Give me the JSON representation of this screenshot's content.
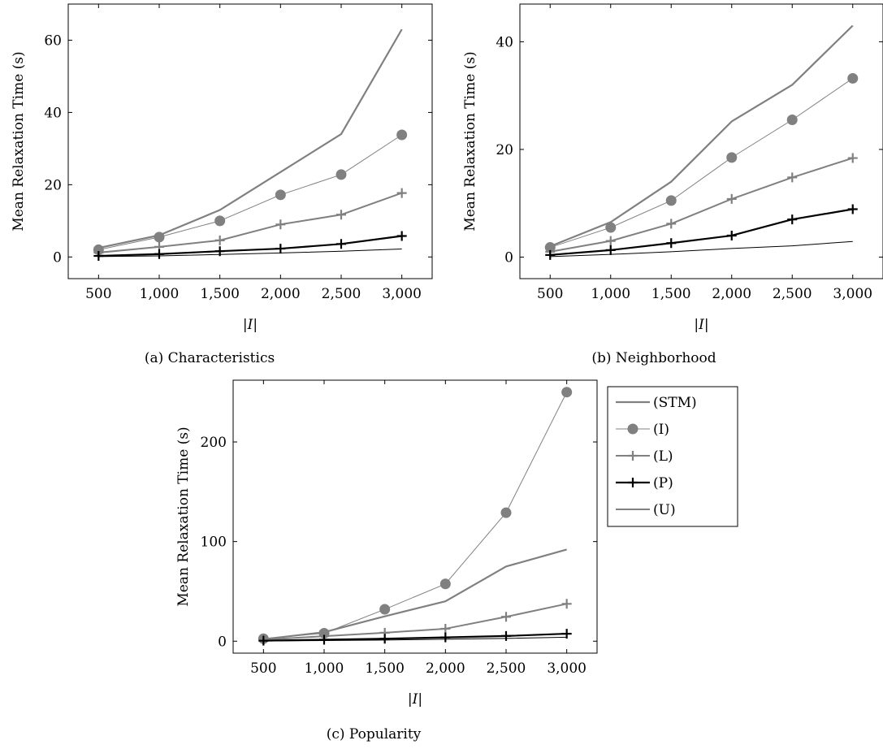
{
  "styles": {
    "STM": {
      "color": "#808080",
      "width": 2.2,
      "marker": "none"
    },
    "I": {
      "color": "#808080",
      "width": 1.0,
      "marker": "circle"
    },
    "L": {
      "color": "#808080",
      "width": 2.0,
      "marker": "plus"
    },
    "P": {
      "color": "#000000",
      "width": 2.2,
      "marker": "plus"
    },
    "U": {
      "color": "#000000",
      "width": 1.0,
      "marker": "none"
    }
  },
  "legend": {
    "entries": [
      {
        "key": "STM",
        "label": "(STM)"
      },
      {
        "key": "I",
        "label": "(I)"
      },
      {
        "key": "L",
        "label": "(L)"
      },
      {
        "key": "P",
        "label": "(P)"
      },
      {
        "key": "U",
        "label": "(U)"
      }
    ]
  },
  "chart_data": [
    {
      "id": "a",
      "type": "line",
      "caption": "(a) Characteristics",
      "xlabel": "|I|",
      "ylabel": "Mean Relaxation Time (s)",
      "x": [
        500,
        1000,
        1500,
        2000,
        2500,
        3000
      ],
      "xtick_labels": [
        "500",
        "1,000",
        "1,500",
        "2,000",
        "2,500",
        "3,000"
      ],
      "xlim": [
        250,
        3250
      ],
      "ylim": [
        -6,
        70
      ],
      "yticks": [
        0,
        20,
        40,
        60
      ],
      "grid": false,
      "series": [
        {
          "key": "STM",
          "name": "(STM)",
          "values": [
            2.5,
            6.0,
            13.0,
            23.5,
            34.0,
            63.0
          ]
        },
        {
          "key": "I",
          "name": "(I)",
          "values": [
            2.0,
            5.5,
            10.0,
            17.2,
            22.8,
            33.8
          ]
        },
        {
          "key": "L",
          "name": "(L)",
          "values": [
            1.2,
            2.8,
            4.6,
            9.0,
            11.7,
            17.7
          ]
        },
        {
          "key": "P",
          "name": "(P)",
          "values": [
            0.3,
            0.8,
            1.6,
            2.3,
            3.6,
            5.8
          ]
        },
        {
          "key": "U",
          "name": "(U)",
          "values": [
            0.1,
            0.3,
            0.7,
            1.1,
            1.6,
            2.2
          ]
        }
      ]
    },
    {
      "id": "b",
      "type": "line",
      "caption": "(b) Neighborhood",
      "xlabel": "|I|",
      "ylabel": "Mean Relaxation Time (s)",
      "x": [
        500,
        1000,
        1500,
        2000,
        2500,
        3000
      ],
      "xtick_labels": [
        "500",
        "1,000",
        "1,500",
        "2,000",
        "2,500",
        "3,000"
      ],
      "xlim": [
        250,
        3250
      ],
      "ylim": [
        -4,
        47
      ],
      "yticks": [
        0,
        20,
        40
      ],
      "grid": false,
      "series": [
        {
          "key": "STM",
          "name": "(STM)",
          "values": [
            2.0,
            6.5,
            14.0,
            25.2,
            32.0,
            43.0
          ]
        },
        {
          "key": "I",
          "name": "(I)",
          "values": [
            1.8,
            5.5,
            10.5,
            18.5,
            25.5,
            33.2
          ]
        },
        {
          "key": "L",
          "name": "(L)",
          "values": [
            1.0,
            3.0,
            6.2,
            10.8,
            14.8,
            18.4
          ]
        },
        {
          "key": "P",
          "name": "(P)",
          "values": [
            0.4,
            1.3,
            2.6,
            4.0,
            7.0,
            8.9
          ]
        },
        {
          "key": "U",
          "name": "(U)",
          "values": [
            0.1,
            0.5,
            1.0,
            1.6,
            2.1,
            2.9
          ]
        }
      ]
    },
    {
      "id": "c",
      "type": "line",
      "caption": "(c) Popularity",
      "xlabel": "|I|",
      "ylabel": "Mean Relaxation Time (s)",
      "x": [
        500,
        1000,
        1500,
        2000,
        2500,
        3000
      ],
      "xtick_labels": [
        "500",
        "1,000",
        "1,500",
        "2,000",
        "2,500",
        "3,000"
      ],
      "xlim": [
        250,
        3250
      ],
      "ylim": [
        -12,
        262
      ],
      "yticks": [
        0,
        100,
        200
      ],
      "grid": false,
      "series": [
        {
          "key": "STM",
          "name": "(STM)",
          "values": [
            2.0,
            9.0,
            25.0,
            40.0,
            75.0,
            92.0
          ]
        },
        {
          "key": "I",
          "name": "(I)",
          "values": [
            2.5,
            8.0,
            32.0,
            57.5,
            129.0,
            250.0
          ]
        },
        {
          "key": "L",
          "name": "(L)",
          "values": [
            1.5,
            5.0,
            8.5,
            12.5,
            24.5,
            37.5
          ]
        },
        {
          "key": "P",
          "name": "(P)",
          "values": [
            0.5,
            1.5,
            2.5,
            3.8,
            5.2,
            7.5
          ]
        },
        {
          "key": "U",
          "name": "(U)",
          "values": [
            0.2,
            0.6,
            1.2,
            2.0,
            2.8,
            4.0
          ]
        }
      ]
    }
  ]
}
